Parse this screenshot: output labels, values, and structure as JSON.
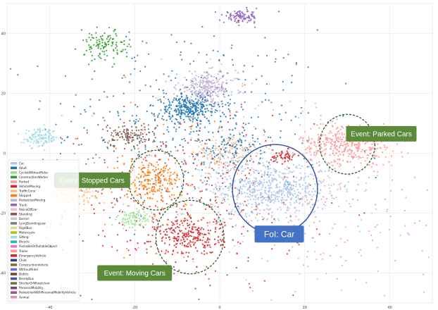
{
  "chart_data": {
    "type": "scatter",
    "title": "",
    "xlabel": "",
    "ylabel": "",
    "xlim": [
      -50,
      50
    ],
    "ylim": [
      -50,
      50
    ],
    "x_ticks": [
      -40,
      -20,
      0,
      20,
      40
    ],
    "y_ticks": [
      40,
      20,
      0,
      -20,
      -40
    ],
    "x_tick_labels": [
      "-40",
      "-20",
      "0",
      "20",
      "40"
    ],
    "y_tick_labels": [
      "40",
      "20",
      "0",
      "-20",
      "-40"
    ],
    "grid": true,
    "legend_position": "bottom-left",
    "series": [
      {
        "name": "Car",
        "color": "#aec7e8"
      },
      {
        "name": "Adult",
        "color": "#1f77b4"
      },
      {
        "name": "CyclistWithoutRider",
        "color": "#98df8a"
      },
      {
        "name": "ConstructionWorker",
        "color": "#2ca02c"
      },
      {
        "name": "Parked",
        "color": "#ff9896"
      },
      {
        "name": "VehicleMoving",
        "color": "#d62728"
      },
      {
        "name": "TrafficCone",
        "color": "#ffbb78"
      },
      {
        "name": "Stopped",
        "color": "#ff7f0e"
      },
      {
        "name": "PedestrianMoving",
        "color": "#c5b0d5"
      },
      {
        "name": "Truck",
        "color": "#9467bd"
      },
      {
        "name": "PoliceOfficer",
        "color": "#f7b6d2"
      },
      {
        "name": "Standing",
        "color": "#8c564b"
      },
      {
        "name": "Barrier",
        "color": "#c7c7c7"
      },
      {
        "name": "LyingStandingLow",
        "color": "#7f7f7f"
      },
      {
        "name": "RigidBus",
        "color": "#dbdb8d"
      },
      {
        "name": "Motorcycle",
        "color": "#bcbd22"
      },
      {
        "name": "Sitting",
        "color": "#9edae5"
      },
      {
        "name": "Bicycle",
        "color": "#17becf"
      },
      {
        "name": "PushableOrPullableObject",
        "color": "#e377c2"
      },
      {
        "name": "Trailer",
        "color": "#ff9896"
      },
      {
        "name": "EmergencyVehicle",
        "color": "#d62728"
      },
      {
        "name": "Child",
        "color": "#393b79"
      },
      {
        "name": "ConstructionVehicle",
        "color": "#8c6d31"
      },
      {
        "name": "WithoutRider",
        "color": "#6b6ecf"
      },
      {
        "name": "Debris",
        "color": "#843c39"
      },
      {
        "name": "BendyBus",
        "color": "#5254a3"
      },
      {
        "name": "StrollerOrWheelchair",
        "color": "#637939"
      },
      {
        "name": "PersonalMobility",
        "color": "#7b4173"
      },
      {
        "name": "PedestrianWithPersonalMobilityVehicle",
        "color": "#a55194"
      },
      {
        "name": "Animal",
        "color": "#e7969c"
      }
    ],
    "clusters": [
      {
        "label": "Car",
        "color": "#aec7e8",
        "center": [
          12,
          -12
        ],
        "spread": [
          7,
          4.5
        ],
        "n": 650
      },
      {
        "label": "Parked",
        "color": "#ff9896",
        "center": [
          30,
          3
        ],
        "spread": [
          5.5,
          3.5
        ],
        "n": 420
      },
      {
        "label": "Adult",
        "color": "#1f77b4",
        "center": [
          -7,
          15
        ],
        "spread": [
          4,
          2.5
        ],
        "n": 320
      },
      {
        "label": "PedestrianMoving",
        "color": "#c5b0d5",
        "center": [
          -3,
          22
        ],
        "spread": [
          3.5,
          2.5
        ],
        "n": 260
      },
      {
        "label": "Truck",
        "color": "#9467bd",
        "center": [
          5,
          45.5
        ],
        "spread": [
          2,
          1
        ],
        "n": 110
      },
      {
        "label": "Sitting",
        "color": "#9edae5",
        "center": [
          -42,
          5
        ],
        "spread": [
          2,
          1.5
        ],
        "n": 120
      },
      {
        "label": "Stopped",
        "color": "#ff7f0e",
        "center": [
          -16,
          -9
        ],
        "spread": [
          3.5,
          3.5
        ],
        "n": 230
      },
      {
        "label": "TrafficCone",
        "color": "#ffbb78",
        "center": [
          -35,
          -13
        ],
        "spread": [
          3,
          1.7
        ],
        "n": 140
      },
      {
        "label": "Standing",
        "color": "#8c564b",
        "center": [
          -21,
          6
        ],
        "spread": [
          3,
          2
        ],
        "n": 120
      },
      {
        "label": "VehicleMoving",
        "color": "#d62728",
        "center": [
          -7,
          -28
        ],
        "spread": [
          4,
          3
        ],
        "n": 230
      },
      {
        "label": "CyclistWithoutRider",
        "color": "#98df8a",
        "center": [
          -20,
          -22
        ],
        "spread": [
          2,
          1.6
        ],
        "n": 90
      },
      {
        "label": "ConstructionWorker",
        "color": "#2ca02c",
        "center": [
          -27,
          36
        ],
        "spread": [
          3,
          2.5
        ],
        "n": 120
      },
      {
        "label": "Barrier",
        "color": "#c7c7c7",
        "center": [
          2,
          0
        ],
        "spread": [
          4,
          3
        ],
        "n": 120
      },
      {
        "label": "TrafficCone",
        "color": "#ffbb78",
        "center": [
          2,
          0
        ],
        "spread": [
          4,
          3
        ],
        "n": 70
      },
      {
        "label": "Adult",
        "color": "#1f77b4",
        "center": [
          2,
          3
        ],
        "spread": [
          4,
          3
        ],
        "n": 80
      },
      {
        "label": "VehicleMoving",
        "color": "#d62728",
        "center": [
          15,
          -1
        ],
        "spread": [
          1.5,
          1
        ],
        "n": 50
      }
    ],
    "scatter_background": [
      {
        "label": "Adult",
        "color": "#1f77b4",
        "center": [
          -8,
          10
        ],
        "spread": [
          16,
          16
        ],
        "n": 420
      },
      {
        "label": "VehicleMoving",
        "color": "#d62728",
        "center": [
          -8,
          -18
        ],
        "spread": [
          14,
          14
        ],
        "n": 380
      },
      {
        "label": "Parked",
        "color": "#ff9896",
        "center": [
          25,
          -18
        ],
        "spread": [
          18,
          14
        ],
        "n": 160
      },
      {
        "label": "Car",
        "color": "#aec7e8",
        "center": [
          10,
          -10
        ],
        "spread": [
          20,
          20
        ],
        "n": 140
      },
      {
        "label": "Stopped",
        "color": "#ff7f0e",
        "center": [
          -14,
          -5
        ],
        "spread": [
          14,
          14
        ],
        "n": 90
      }
    ],
    "annotations": [
      {
        "text": "Event: Parked Cars",
        "type": "dashed-circle-callout",
        "center": [
          30,
          3
        ],
        "radius_x": 6.5,
        "box_at": [
          38,
          6.5
        ]
      },
      {
        "text": "Event: Stopped Cars",
        "type": "dashed-circle-callout",
        "center": [
          -15,
          -9
        ],
        "radius_x": 6.5,
        "box_at": [
          -30,
          -9
        ]
      },
      {
        "text": "Event: Moving Cars",
        "type": "dashed-circle-callout",
        "center": [
          -7,
          -28
        ],
        "radius_x": 8,
        "box_at": [
          -20,
          -40
        ]
      },
      {
        "text": "FoI: Car",
        "type": "solid-circle-callout",
        "center": [
          13,
          -12
        ],
        "radius_x": 10,
        "box_at": [
          14,
          -27
        ]
      }
    ],
    "legend_entries": [
      "Car",
      "Adult",
      "CyclistWithoutRider",
      "ConstructionWorker",
      "Parked",
      "VehicleMoving",
      "TrafficCone",
      "Stopped",
      "PedestrianMoving",
      "Truck",
      "PoliceOfficer",
      "Standing",
      "Barrier",
      "LyingStandingLow",
      "RigidBus",
      "Motorcycle",
      "Sitting",
      "Bicycle",
      "PushableOrPullableObject",
      "Trailer",
      "EmergencyVehicle",
      "Child",
      "ConstructionVehicle",
      "WithoutRider",
      "Debris",
      "BendyBus",
      "StrollerOrWheelchair",
      "PersonalMobility",
      "PedestrianWithPersonalMobilityVehicle",
      "Animal"
    ]
  },
  "colors": {
    "event_box": "#5b8a3a",
    "event_circle": "#2f5a2a",
    "foi_box": "#4472c4",
    "foi_circle": "#2e4f9e",
    "grid": "#e6e6e6"
  }
}
